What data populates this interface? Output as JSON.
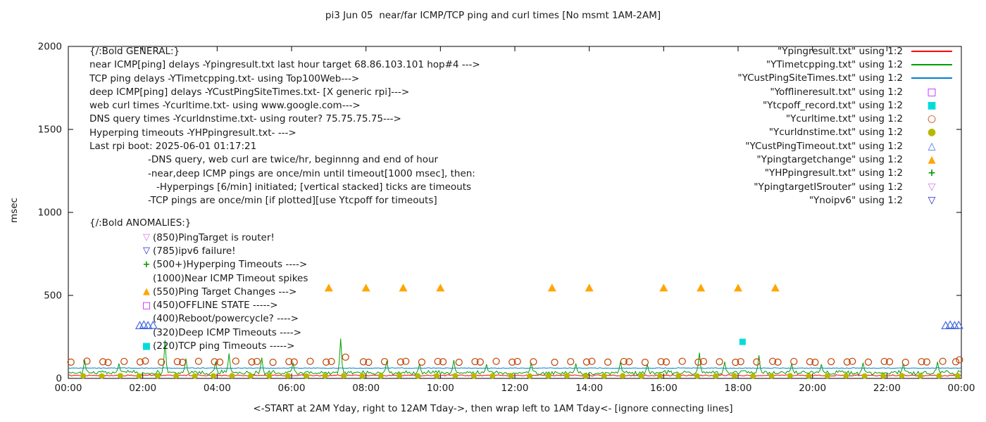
{
  "title": "pi3 Jun 05  near/far ICMP/TCP ping and curl times [No msmt 1AM-2AM]",
  "ylabel": "msec",
  "xlabel": "<-START at 2AM Yday, right to 12AM Tday->, then wrap left to 1AM Tday<- [ignore connecting lines]",
  "general": {
    "lines": [
      {
        "text": "{/:Bold GENERAL:}",
        "indent": 0
      },
      {
        "text": "near ICMP[ping] delays -Ypingresult.txt last hour target 68.86.103.101 hop#4 --->",
        "indent": 0
      },
      {
        "text": "TCP ping delays -YTimetcpping.txt- using Top100Web--->",
        "indent": 0
      },
      {
        "text": "deep ICMP[ping] delays -YCustPingSiteTimes.txt- [X generic rpi]--->",
        "indent": 0
      },
      {
        "text": "web curl times -Ycurltime.txt- using www.google.com--->",
        "indent": 0
      },
      {
        "text": "DNS query times -Ycurldnstime.txt- using router? 75.75.75.75--->",
        "indent": 0
      },
      {
        "text": "Hyperping timeouts -YHPpingresult.txt- --->",
        "indent": 0
      },
      {
        "text": "Last rpi boot: 2025-06-01 01:17:21",
        "indent": 0
      },
      {
        "text": "-DNS query, web curl are twice/hr, beginnng and end of hour",
        "indent": 1
      },
      {
        "text": "-near,deep ICMP pings are once/min until timeout[1000 msec], then:",
        "indent": 1
      },
      {
        "text": "-Hyperpings [6/min] initiated; [vertical stacked] ticks are timeouts",
        "indent": 2
      },
      {
        "text": "-TCP pings are once/min [if plotted][use Ytcpoff for timeouts]",
        "indent": 1
      }
    ]
  },
  "anomalies": {
    "header": "{/:Bold ANOMALIES:}",
    "items": [
      {
        "marker": "open-triangle-down",
        "color": "#d878e8",
        "text": "(850)PingTarget is router!"
      },
      {
        "marker": "open-triangle-down",
        "color": "#2929c8",
        "text": "(785)ipv6 failure!"
      },
      {
        "marker": "plus",
        "color": "#009900",
        "text": "(500+)Hyperping Timeouts ---->"
      },
      {
        "marker": "none",
        "color": "",
        "text": "(1000)Near ICMP Timeout spikes"
      },
      {
        "marker": "filled-triangle-up",
        "color": "#ffa500",
        "text": "(550)Ping Target Changes --->"
      },
      {
        "marker": "open-square",
        "color": "#c000ff",
        "text": "(450)OFFLINE STATE ----->"
      },
      {
        "marker": "none",
        "color": "",
        "text": "(400)Reboot/powercycle? ---->"
      },
      {
        "marker": "none",
        "color": "",
        "text": "(320)Deep ICMP Timeouts ---->"
      },
      {
        "marker": "filled-square",
        "color": "#00dcdc",
        "text": "(220)TCP ping Timeouts ----->"
      }
    ]
  },
  "legend": {
    "items": [
      {
        "label": "\"Ypingresult.txt\" using 1:2",
        "swatch": "line",
        "color": "#ff0000"
      },
      {
        "label": "\"YTimetcpping.txt\" using 1:2",
        "swatch": "line",
        "color": "#00a000"
      },
      {
        "label": "\"YCustPingSiteTimes.txt\" using 1:2",
        "swatch": "line",
        "color": "#0080d0"
      },
      {
        "label": "\"Yofflineresult.txt\" using 1:2",
        "swatch": "open-square",
        "color": "#c000ff"
      },
      {
        "label": "\"Ytcpoff_record.txt\" using 1:2",
        "swatch": "filled-square",
        "color": "#00dcdc"
      },
      {
        "label": "\"Ycurltime.txt\" using 1:2",
        "swatch": "open-circle",
        "color": "#c04000"
      },
      {
        "label": "\"Ycurldnstime.txt\" using 1:2",
        "swatch": "filled-circle",
        "color": "#b8b800"
      },
      {
        "label": "\"YCustPingTimeout.txt\" using 1:2",
        "swatch": "open-triangle-up",
        "color": "#4169e1"
      },
      {
        "label": "\"Ypingtargetchange\" using 1:2",
        "swatch": "filled-triangle-up",
        "color": "#ffa500"
      },
      {
        "label": "\"YHPpingresult.txt\" using 1:2",
        "swatch": "plus",
        "color": "#009900"
      },
      {
        "label": "\"YpingtargetISrouter\" using 1:2",
        "swatch": "open-triangle-down",
        "color": "#d878e8"
      },
      {
        "label": "\"Ynoipv6\" using 1:2",
        "swatch": "open-triangle-down",
        "color": "#2929c8"
      }
    ]
  },
  "chart_data": {
    "type": "line+scatter",
    "title": "pi3 Jun 05  near/far ICMP/TCP ping and curl times [No msmt 1AM-2AM]",
    "xlabel_note": "x axis is 24 hours, 00:00 to 00:00, ticks every 2 hours",
    "ylabel": "msec",
    "xlim": [
      0,
      24
    ],
    "ylim": [
      0,
      2000
    ],
    "x_tick_hours": [
      0,
      2,
      4,
      6,
      8,
      10,
      12,
      14,
      16,
      18,
      20,
      22,
      24
    ],
    "x_ticks": [
      "00:00",
      "02:00",
      "04:00",
      "06:00",
      "08:00",
      "10:00",
      "12:00",
      "14:00",
      "16:00",
      "18:00",
      "20:00",
      "22:00",
      "00:00"
    ],
    "y_ticks": [
      0,
      500,
      1000,
      1500,
      2000
    ],
    "grid": false,
    "legend_position": "top-right, outside-style right column",
    "series": [
      {
        "name": "Ypingresult.txt",
        "type": "line",
        "color": "#ff0000",
        "baseline": 18,
        "noise": 5,
        "spikes": []
      },
      {
        "name": "YTimetcpping.txt",
        "type": "line",
        "color": "#00a000",
        "baseline": 34,
        "noise": 16,
        "spikes": [
          [
            0.45,
            110
          ],
          [
            1.35,
            90
          ],
          [
            2.6,
            230
          ],
          [
            3.15,
            120
          ],
          [
            3.95,
            100
          ],
          [
            4.3,
            150
          ],
          [
            5.2,
            125
          ],
          [
            6.05,
            95
          ],
          [
            7.3,
            240
          ],
          [
            8.55,
            105
          ],
          [
            9.45,
            90
          ],
          [
            10.35,
            110
          ],
          [
            11.25,
            85
          ],
          [
            12.45,
            95
          ],
          [
            13.65,
            90
          ],
          [
            14.85,
            100
          ],
          [
            15.55,
            85
          ],
          [
            16.95,
            155
          ],
          [
            17.65,
            100
          ],
          [
            18.55,
            140
          ],
          [
            19.45,
            90
          ],
          [
            20.25,
            85
          ],
          [
            21.35,
            95
          ],
          [
            22.45,
            90
          ],
          [
            23.35,
            100
          ]
        ]
      },
      {
        "name": "YCustPingSiteTimes.txt",
        "type": "line",
        "color": "#0080d0",
        "baseline": 62,
        "noise": 3,
        "spikes": []
      },
      {
        "name": "Yofflineresult.txt",
        "type": "scatter",
        "marker": "open-square",
        "color": "#c000ff",
        "points": []
      },
      {
        "name": "Ytcpoff_record.txt",
        "type": "scatter",
        "marker": "filled-square",
        "color": "#00dcdc",
        "points": [
          [
            18.12,
            220
          ]
        ]
      },
      {
        "name": "Ycurltime.txt",
        "type": "scatter",
        "marker": "open-circle",
        "color": "#c04000",
        "points": [
          [
            0.07,
            98
          ],
          [
            0.5,
            104
          ],
          [
            0.93,
            100
          ],
          [
            1.07,
            96
          ],
          [
            1.5,
            102
          ],
          [
            1.93,
            99
          ],
          [
            2.07,
            105
          ],
          [
            2.5,
            98
          ],
          [
            2.93,
            101
          ],
          [
            3.07,
            97
          ],
          [
            3.5,
            103
          ],
          [
            3.93,
            100
          ],
          [
            4.07,
            98
          ],
          [
            4.5,
            104
          ],
          [
            4.93,
            99
          ],
          [
            5.07,
            102
          ],
          [
            5.5,
            97
          ],
          [
            5.93,
            101
          ],
          [
            6.07,
            99
          ],
          [
            6.5,
            103
          ],
          [
            6.93,
            98
          ],
          [
            7.07,
            102
          ],
          [
            7.45,
            128
          ],
          [
            7.93,
            100
          ],
          [
            8.07,
            97
          ],
          [
            8.5,
            101
          ],
          [
            8.93,
            99
          ],
          [
            9.07,
            103
          ],
          [
            9.5,
            98
          ],
          [
            9.93,
            102
          ],
          [
            10.07,
            100
          ],
          [
            10.5,
            97
          ],
          [
            10.93,
            101
          ],
          [
            11.07,
            99
          ],
          [
            11.5,
            103
          ],
          [
            11.93,
            98
          ],
          [
            12.07,
            102
          ],
          [
            12.5,
            100
          ],
          [
            13.07,
            97
          ],
          [
            13.5,
            101
          ],
          [
            13.93,
            99
          ],
          [
            14.07,
            103
          ],
          [
            14.5,
            98
          ],
          [
            14.93,
            102
          ],
          [
            15.07,
            100
          ],
          [
            15.5,
            97
          ],
          [
            15.93,
            101
          ],
          [
            16.07,
            99
          ],
          [
            16.5,
            103
          ],
          [
            16.93,
            98
          ],
          [
            17.07,
            102
          ],
          [
            17.5,
            100
          ],
          [
            17.93,
            97
          ],
          [
            18.07,
            101
          ],
          [
            18.5,
            99
          ],
          [
            18.93,
            103
          ],
          [
            19.07,
            98
          ],
          [
            19.5,
            102
          ],
          [
            19.93,
            100
          ],
          [
            20.07,
            97
          ],
          [
            20.5,
            101
          ],
          [
            20.93,
            99
          ],
          [
            21.07,
            103
          ],
          [
            21.5,
            98
          ],
          [
            21.93,
            102
          ],
          [
            22.07,
            100
          ],
          [
            22.5,
            97
          ],
          [
            22.93,
            101
          ],
          [
            23.07,
            99
          ],
          [
            23.5,
            103
          ],
          [
            23.85,
            100
          ],
          [
            23.95,
            112
          ]
        ]
      },
      {
        "name": "Ycurldnstime.txt",
        "type": "scatter",
        "marker": "filled-circle",
        "color": "#b8b800",
        "points": [
          [
            0.4,
            15
          ],
          [
            0.9,
            14
          ],
          [
            1.4,
            16
          ],
          [
            1.9,
            14
          ],
          [
            2.4,
            15
          ],
          [
            2.9,
            16
          ],
          [
            3.4,
            14
          ],
          [
            3.9,
            15
          ],
          [
            4.4,
            16
          ],
          [
            4.9,
            14
          ],
          [
            5.4,
            15
          ],
          [
            5.9,
            16
          ],
          [
            6.4,
            14
          ],
          [
            6.9,
            15
          ],
          [
            7.4,
            16
          ],
          [
            7.9,
            14
          ],
          [
            8.4,
            15
          ],
          [
            8.9,
            16
          ],
          [
            9.4,
            14
          ],
          [
            9.9,
            15
          ],
          [
            10.4,
            16
          ],
          [
            10.9,
            14
          ],
          [
            11.4,
            15
          ],
          [
            11.9,
            16
          ],
          [
            12.4,
            14
          ],
          [
            12.9,
            15
          ],
          [
            13.4,
            16
          ],
          [
            13.9,
            14
          ],
          [
            14.4,
            15
          ],
          [
            14.9,
            16
          ],
          [
            15.4,
            14
          ],
          [
            15.9,
            15
          ],
          [
            16.4,
            16
          ],
          [
            16.9,
            14
          ],
          [
            17.4,
            15
          ],
          [
            17.9,
            16
          ],
          [
            18.4,
            14
          ],
          [
            18.9,
            15
          ],
          [
            19.4,
            16
          ],
          [
            19.9,
            14
          ],
          [
            20.4,
            15
          ],
          [
            20.9,
            16
          ],
          [
            21.4,
            14
          ],
          [
            21.9,
            15
          ],
          [
            22.4,
            16
          ],
          [
            22.9,
            14
          ],
          [
            23.4,
            15
          ],
          [
            23.9,
            16
          ]
        ]
      },
      {
        "name": "YCustPingTimeout.txt",
        "type": "scatter",
        "marker": "open-triangle-up",
        "color": "#4169e1",
        "points": [
          [
            1.92,
            318
          ],
          [
            2.03,
            322
          ],
          [
            2.14,
            318
          ],
          [
            2.28,
            320
          ],
          [
            23.58,
            318
          ],
          [
            23.7,
            322
          ],
          [
            23.82,
            318
          ],
          [
            23.93,
            320
          ]
        ]
      },
      {
        "name": "Ypingtargetchange",
        "type": "scatter",
        "marker": "filled-triangle-up",
        "color": "#ffa500",
        "points": [
          [
            7,
            545
          ],
          [
            8,
            545
          ],
          [
            9,
            545
          ],
          [
            10,
            545
          ],
          [
            13,
            545
          ],
          [
            14,
            545
          ],
          [
            16,
            545
          ],
          [
            17,
            545
          ],
          [
            18,
            545
          ],
          [
            19,
            545
          ]
        ]
      },
      {
        "name": "YHPpingresult.txt",
        "type": "scatter",
        "marker": "plus",
        "color": "#009900",
        "points": []
      },
      {
        "name": "YpingtargetISrouter",
        "type": "scatter",
        "marker": "open-triangle-down",
        "color": "#d878e8",
        "points": []
      },
      {
        "name": "Ynoipv6",
        "type": "scatter",
        "marker": "open-triangle-down",
        "color": "#2929c8",
        "points": []
      }
    ]
  }
}
